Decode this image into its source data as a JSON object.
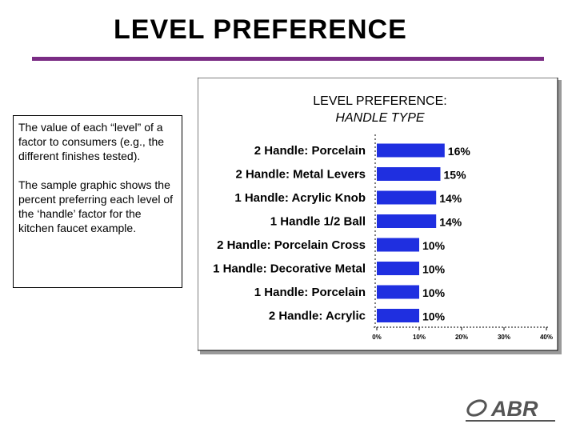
{
  "slide": {
    "title": "LEVEL PREFERENCE",
    "paragraphs": [
      "The value of each “level” of a factor to consumers (e.g., the different finishes tested).",
      "The sample graphic shows the percent preferring each level of the ‘handle’ factor for the kitchen faucet example."
    ],
    "logo_text": "ABR"
  },
  "colors": {
    "title_rule": "#7a2c84",
    "bar": "#1f2fe0",
    "frame_shadow": "#9a9a9a"
  },
  "chart_data": {
    "type": "bar",
    "orientation": "horizontal",
    "title": "LEVEL PREFERENCE:",
    "subtitle": "HANDLE TYPE",
    "categories": [
      "2 Handle:  Porcelain",
      "2 Handle:  Metal Levers",
      "1 Handle:  Acrylic Knob",
      "1 Handle 1/2 Ball",
      "2 Handle: Porcelain Cross",
      "1 Handle: Decorative Metal",
      "1 Handle: Porcelain",
      "2 Handle: Acrylic"
    ],
    "values": [
      16,
      15,
      14,
      14,
      10,
      10,
      10,
      10
    ],
    "value_labels": [
      "16%",
      "15%",
      "14%",
      "14%",
      "10%",
      "10%",
      "10%",
      "10%"
    ],
    "xlim": [
      0,
      40
    ],
    "x_ticks": [
      0,
      10,
      20,
      30,
      40
    ],
    "x_tick_labels": [
      "0%",
      "10%",
      "20%",
      "30%",
      "40%"
    ],
    "grid": false
  }
}
